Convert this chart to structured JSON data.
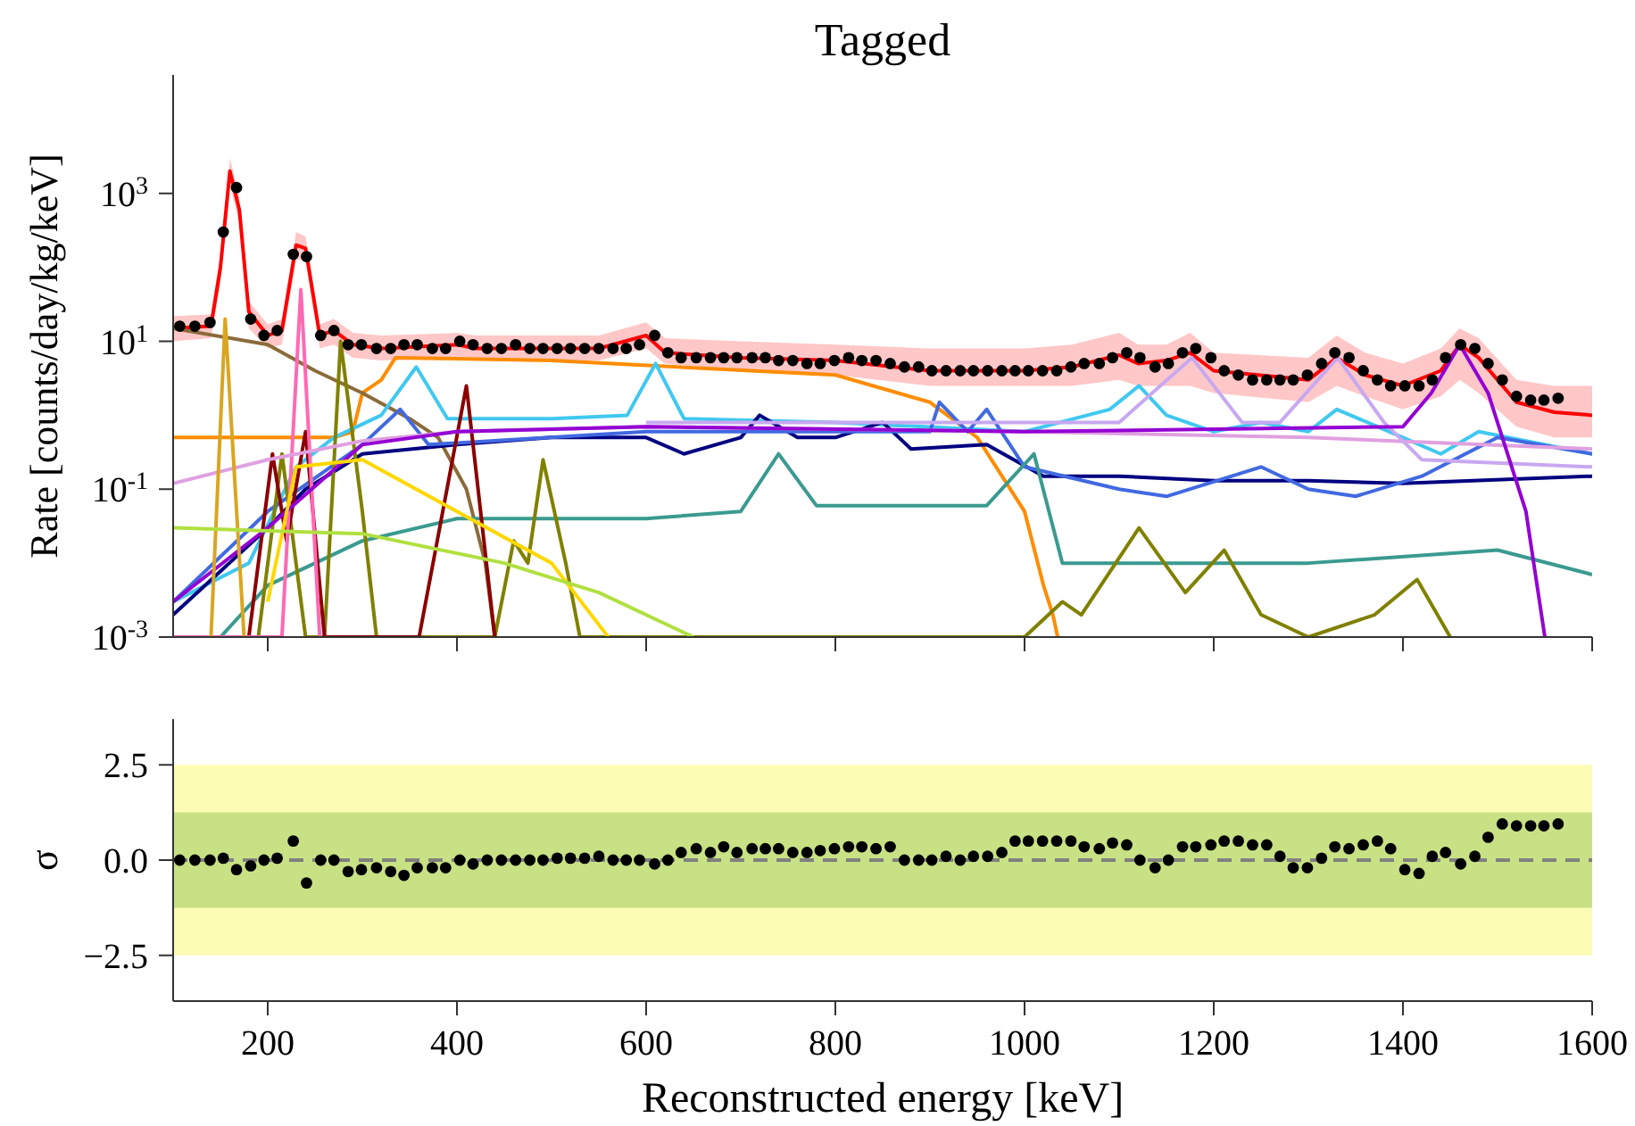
{
  "chart_data": [
    {
      "type": "line",
      "title": "Tagged",
      "ylabel": "Rate [counts/day/kg/keV]",
      "log": "y",
      "xlim": [
        100,
        1600
      ],
      "xticks": [
        200,
        400,
        600,
        800,
        1000,
        1200,
        1400,
        1600
      ],
      "ylim": [
        0.001,
        40000
      ],
      "yticks": [
        {
          "value": 0.001,
          "label": "10$^{-3}$"
        },
        {
          "value": 0.1,
          "label": "10$^{-1}$"
        },
        {
          "value": 10,
          "label": "10$^{1}$"
        },
        {
          "value": 1000,
          "label": "10$^{3}$"
        }
      ],
      "tick_labels": "y",
      "grid": false,
      "legend": false,
      "line_style": "solid",
      "series": [
        {
          "type": "line",
          "color": "#ff0000",
          "x": [
            100,
            140,
            150,
            160,
            170,
            180,
            200,
            215,
            230,
            240,
            255,
            270,
            290,
            320,
            400,
            420,
            500,
            550,
            600,
            620,
            700,
            800,
            900,
            960,
            1000,
            1050,
            1100,
            1120,
            1150,
            1175,
            1200,
            1300,
            1330,
            1360,
            1400,
            1440,
            1460,
            1480,
            1520,
            1560,
            1600
          ],
          "values": [
            15,
            16,
            100,
            2000,
            600,
            25,
            12,
            14,
            200,
            180,
            12,
            14,
            9,
            8,
            9,
            8,
            8,
            8,
            12,
            7,
            6,
            5.5,
            4,
            4,
            4,
            4.5,
            6.5,
            5,
            5.5,
            7,
            4,
            3,
            6,
            3.5,
            2.5,
            4,
            9,
            6,
            1.5,
            1.1,
            1
          ],
          "lower": [
            10,
            11,
            60,
            1300,
            400,
            15,
            8,
            9,
            130,
            120,
            8,
            9,
            6,
            5.5,
            6,
            5.5,
            5.5,
            5.5,
            8,
            5,
            4,
            3.5,
            2.5,
            2.5,
            2.5,
            2.5,
            3,
            2.5,
            2.5,
            2.5,
            2,
            1.5,
            2.5,
            1.8,
            1.2,
            1.8,
            3,
            2,
            0.7,
            0.5,
            0.5
          ],
          "upper": [
            22,
            23,
            150,
            3000,
            900,
            35,
            17,
            20,
            300,
            260,
            17,
            20,
            13,
            12,
            13,
            12,
            12,
            12,
            18,
            11,
            10,
            9,
            8,
            8,
            8,
            9,
            13,
            9,
            9,
            13,
            7,
            6,
            12,
            7,
            5,
            8,
            15,
            11,
            3,
            2.5,
            2.5
          ]
        },
        {
          "type": "line",
          "color": "#ff8c00",
          "x": [
            100,
            270,
            290,
            300,
            320,
            335,
            500,
            800,
            900,
            950,
            1000,
            1020,
            1030,
            1035
          ],
          "values": [
            0.5,
            0.5,
            0.6,
            2,
            3,
            6,
            5.5,
            3.5,
            1.5,
            0.5,
            0.05,
            0.005,
            0.002,
            0.001
          ]
        },
        {
          "type": "line",
          "color": "#8b6b3a",
          "x": [
            100,
            200,
            250,
            300,
            350,
            380,
            410,
            430,
            440
          ],
          "values": [
            15,
            9,
            4,
            2,
            0.9,
            0.5,
            0.1,
            0.01,
            0.001
          ]
        },
        {
          "type": "line",
          "color": "#40c8f0",
          "x": [
            100,
            180,
            230,
            270,
            320,
            357,
            390,
            500,
            580,
            610,
            640,
            800,
            1000,
            1090,
            1121,
            1150,
            1200,
            1250,
            1300,
            1330,
            1400,
            1440,
            1480,
            1600
          ],
          "values": [
            0.003,
            0.01,
            0.2,
            0.5,
            1,
            4.5,
            0.9,
            0.9,
            1,
            5,
            0.9,
            0.8,
            0.6,
            1.2,
            2.5,
            1,
            0.6,
            0.8,
            0.6,
            1.2,
            0.5,
            0.3,
            0.6,
            0.3
          ]
        },
        {
          "type": "line",
          "color": "#000080",
          "x": [
            100,
            200,
            240,
            300,
            400,
            500,
            600,
            640,
            700,
            720,
            760,
            800,
            850,
            880,
            960,
            1020,
            1100,
            1200,
            1300,
            1400,
            1600
          ],
          "values": [
            0.002,
            0.03,
            0.1,
            0.3,
            0.4,
            0.5,
            0.5,
            0.3,
            0.5,
            1,
            0.5,
            0.5,
            0.8,
            0.35,
            0.4,
            0.15,
            0.15,
            0.13,
            0.13,
            0.12,
            0.15
          ]
        },
        {
          "type": "line",
          "color": "#4169e1",
          "x": [
            100,
            200,
            300,
            340,
            370,
            600,
            900,
            910,
            940,
            960,
            1000,
            1100,
            1150,
            1250,
            1300,
            1350,
            1420,
            1500,
            1600
          ],
          "values": [
            0.003,
            0.05,
            0.4,
            1.2,
            0.4,
            0.6,
            0.6,
            1.5,
            0.6,
            1.2,
            0.2,
            0.1,
            0.08,
            0.2,
            0.1,
            0.08,
            0.15,
            0.5,
            0.3
          ]
        },
        {
          "type": "line",
          "color": "#3a9a90",
          "x": [
            150,
            200,
            300,
            400,
            600,
            700,
            740,
            780,
            960,
            1010,
            1040,
            1100,
            1300,
            1500,
            1600
          ],
          "values": [
            0.001,
            0.005,
            0.02,
            0.04,
            0.04,
            0.05,
            0.3,
            0.06,
            0.06,
            0.3,
            0.01,
            0.01,
            0.01,
            0.015,
            0.007
          ]
        },
        {
          "type": "line",
          "color": "#808000",
          "x": [
            190,
            215,
            240,
            260,
            277,
            300,
            315,
            440,
            460,
            475,
            491,
            515,
            530,
            1000,
            1040,
            1060,
            1121,
            1170,
            1211,
            1250,
            1300,
            1370,
            1415,
            1450
          ],
          "values": [
            0.001,
            0.3,
            0.001,
            0.001,
            10,
            0.05,
            0.001,
            0.001,
            0.02,
            0.01,
            0.25,
            0.01,
            0.001,
            0.001,
            0.003,
            0.002,
            0.03,
            0.004,
            0.015,
            0.002,
            0.001,
            0.002,
            0.006,
            0.001
          ]
        },
        {
          "type": "line",
          "color": "#8b0000",
          "x": [
            180,
            205,
            220,
            240,
            260,
            360,
            410,
            440
          ],
          "values": [
            0.001,
            0.3,
            0.02,
            0.6,
            0.001,
            0.001,
            2.5,
            0.001
          ]
        },
        {
          "type": "line",
          "color": "#ff69b4",
          "x": [
            100,
            215,
            235,
            255
          ],
          "values": [
            0.001,
            0.001,
            50,
            0.001
          ]
        },
        {
          "type": "line",
          "color": "#e0a0e0",
          "x": [
            100,
            200,
            300,
            400,
            600,
            1000,
            1300,
            1600
          ],
          "values": [
            0.12,
            0.25,
            0.45,
            0.6,
            0.7,
            0.6,
            0.5,
            0.35
          ]
        },
        {
          "type": "line",
          "color": "#c8a8f0",
          "x": [
            600,
            1100,
            1177,
            1230,
            1270,
            1331,
            1380,
            1420,
            1600
          ],
          "values": [
            0.8,
            0.8,
            6,
            0.8,
            0.8,
            6,
            0.8,
            0.25,
            0.2
          ]
        },
        {
          "type": "line",
          "color": "#9400d3",
          "x": [
            100,
            200,
            300,
            400,
            600,
            1000,
            1400,
            1430,
            1460,
            1490,
            1530,
            1550
          ],
          "values": [
            0.003,
            0.03,
            0.4,
            0.6,
            0.7,
            0.6,
            0.7,
            2,
            9,
            2,
            0.05,
            0.001
          ]
        },
        {
          "type": "line",
          "color": "#daa520",
          "x": [
            140,
            155,
            175
          ],
          "values": [
            0.001,
            20,
            0.001
          ]
        },
        {
          "type": "line",
          "color": "#ffd700",
          "x": [
            200,
            230,
            300,
            400,
            500,
            560
          ],
          "values": [
            0.003,
            0.2,
            0.25,
            0.05,
            0.01,
            0.001
          ]
        },
        {
          "type": "line",
          "color": "#b0e040",
          "x": [
            100,
            300,
            450,
            550,
            650
          ],
          "values": [
            0.03,
            0.025,
            0.01,
            0.004,
            0.001
          ]
        },
        {
          "type": "scatter",
          "color": "#000000",
          "marker": "circle",
          "x": [
            107,
            123,
            139,
            153,
            167,
            182,
            196,
            210,
            227,
            241,
            256,
            270,
            285,
            299,
            315,
            330,
            344,
            358,
            374,
            388,
            403,
            417,
            432,
            447,
            462,
            477,
            491,
            506,
            520,
            535,
            550,
            565,
            579,
            593,
            609,
            623,
            637,
            653,
            668,
            682,
            696,
            712,
            726,
            740,
            755,
            770,
            784,
            799,
            814,
            828,
            843,
            858,
            873,
            888,
            902,
            917,
            932,
            946,
            961,
            976,
            990,
            1004,
            1019,
            1034,
            1049,
            1063,
            1079,
            1093,
            1108,
            1122,
            1138,
            1152,
            1167,
            1181,
            1197,
            1211,
            1226,
            1241,
            1256,
            1270,
            1284,
            1299,
            1314,
            1328,
            1343,
            1358,
            1373,
            1387,
            1402,
            1417,
            1431,
            1445,
            1461,
            1476,
            1490,
            1505,
            1520,
            1535,
            1549,
            1564
          ],
          "values": [
            16,
            16,
            18,
            300,
            1200,
            20,
            12,
            14,
            150,
            140,
            12,
            14,
            9,
            9,
            8,
            8,
            9,
            9,
            8,
            8,
            10,
            9,
            8,
            8,
            9,
            8,
            8,
            8,
            8,
            8,
            8,
            8,
            8,
            9,
            12,
            7,
            6,
            6,
            6,
            6,
            6,
            6,
            6,
            5.5,
            5.5,
            5,
            5,
            5.5,
            6,
            5.5,
            5.5,
            5,
            4.5,
            4.5,
            4,
            4,
            4,
            4,
            4,
            4,
            4,
            4,
            4,
            4,
            4.5,
            5,
            5,
            6,
            7,
            6,
            4.5,
            5,
            7,
            8,
            6,
            4,
            3.5,
            3,
            3,
            3,
            3,
            3.5,
            5,
            7,
            6,
            4,
            3,
            2.5,
            2.5,
            2.5,
            3,
            6,
            9,
            8,
            5,
            3,
            1.8,
            1.6,
            1.6,
            1.7
          ]
        }
      ]
    },
    {
      "type": "scatter",
      "xlabel": "Reconstructed energy [keV]",
      "ylabel": "σ",
      "xlim": [
        100,
        1600
      ],
      "xticks": [
        200,
        400,
        600,
        800,
        1000,
        1200,
        1400,
        1600
      ],
      "ylim": [
        -3.7,
        3.7
      ],
      "yticks": [
        {
          "value": -2.5,
          "label": "−2.5"
        },
        {
          "value": 0,
          "label": "0.0"
        },
        2.5
      ],
      "grid": false,
      "legend": false,
      "marker": "circle",
      "ref_lines": [
        {
          "axis": "y",
          "value": 0,
          "color": "#808080",
          "line_style": "dashed"
        }
      ],
      "bands": [
        {
          "axis": "y",
          "from": -2.5,
          "to": 2.5,
          "color": "#fcfcb4"
        },
        {
          "axis": "y",
          "from": -1.25,
          "to": 1.25,
          "color": "#c8e184"
        }
      ],
      "series": [
        {
          "color": "#000000",
          "x": [
            107,
            123,
            139,
            153,
            167,
            182,
            196,
            210,
            227,
            241,
            256,
            270,
            285,
            299,
            315,
            330,
            344,
            358,
            374,
            388,
            403,
            417,
            432,
            447,
            462,
            477,
            491,
            506,
            520,
            535,
            550,
            565,
            579,
            593,
            609,
            623,
            637,
            653,
            668,
            682,
            696,
            712,
            726,
            740,
            755,
            770,
            784,
            799,
            814,
            828,
            843,
            858,
            873,
            888,
            902,
            917,
            932,
            946,
            961,
            976,
            990,
            1004,
            1019,
            1034,
            1049,
            1063,
            1079,
            1093,
            1108,
            1122,
            1138,
            1152,
            1167,
            1181,
            1197,
            1211,
            1226,
            1241,
            1256,
            1270,
            1284,
            1299,
            1314,
            1328,
            1343,
            1358,
            1373,
            1387,
            1402,
            1417,
            1431,
            1445,
            1461,
            1476,
            1490,
            1505,
            1520,
            1535,
            1549,
            1564
          ],
          "values": [
            0,
            0,
            0,
            0.05,
            -0.25,
            -0.15,
            0,
            0.05,
            0.5,
            -0.6,
            0,
            0,
            -0.3,
            -0.25,
            -0.2,
            -0.3,
            -0.4,
            -0.2,
            -0.2,
            -0.2,
            0,
            -0.1,
            0,
            0,
            0,
            0,
            0,
            0.05,
            0.05,
            0.05,
            0.1,
            0,
            0,
            0,
            -0.1,
            0,
            0.2,
            0.3,
            0.2,
            0.35,
            0.2,
            0.3,
            0.3,
            0.3,
            0.2,
            0.2,
            0.25,
            0.3,
            0.35,
            0.35,
            0.3,
            0.35,
            0,
            0,
            0,
            0.1,
            0,
            0.1,
            0.1,
            0.2,
            0.5,
            0.5,
            0.5,
            0.5,
            0.5,
            0.35,
            0.3,
            0.45,
            0.4,
            0,
            -0.2,
            0,
            0.35,
            0.35,
            0.4,
            0.5,
            0.5,
            0.4,
            0.4,
            0.1,
            -0.2,
            -0.2,
            0.05,
            0.35,
            0.3,
            0.4,
            0.5,
            0.3,
            -0.25,
            -0.35,
            0.1,
            0.2,
            -0.1,
            0.1,
            0.6,
            0.95,
            0.9,
            0.9,
            0.9,
            0.95
          ]
        }
      ]
    }
  ]
}
